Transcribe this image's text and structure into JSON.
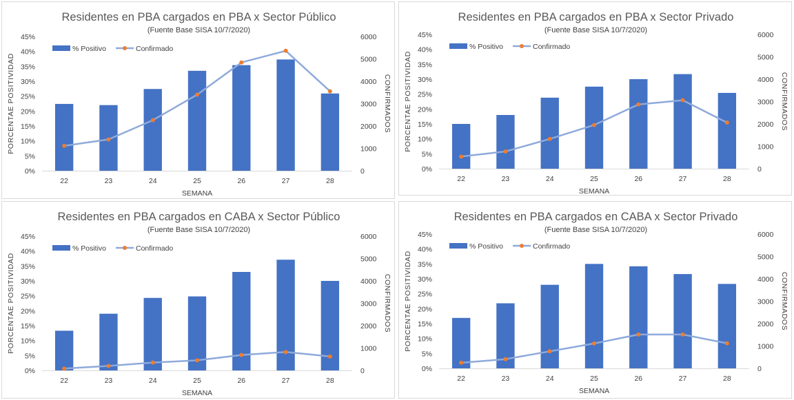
{
  "chart_data": [
    {
      "type": "bar",
      "title": "Residentes en PBA cargados en PBA x Sector Público",
      "subtitle": "(Fuente Base SISA 10/7/2020)",
      "xlabel": "SEMANA",
      "ylabel": "PORCENTAE POSITIVIDAD",
      "y2label": "CONFIRMADOS",
      "categories": [
        "22",
        "23",
        "24",
        "25",
        "26",
        "27",
        "28"
      ],
      "ylim": [
        0,
        45
      ],
      "y2lim": [
        0,
        6000
      ],
      "yticks": [
        "0%",
        "5%",
        "10%",
        "15%",
        "20%",
        "25%",
        "30%",
        "35%",
        "40%",
        "45%"
      ],
      "y2ticks": [
        "0",
        "1000",
        "2000",
        "3000",
        "4000",
        "5000",
        "6000"
      ],
      "legend_position": "top-left",
      "grid": false,
      "series": [
        {
          "name": "% Positivo",
          "type": "bar",
          "axis": "left",
          "color": "#4472c4",
          "values": [
            22.4,
            22.0,
            27.4,
            33.5,
            35.4,
            37.3,
            25.9
          ]
        },
        {
          "name": "Confirmado",
          "type": "line",
          "axis": "right",
          "color": "#8eaadb",
          "marker_color": "#ed7d31",
          "values": [
            1110,
            1400,
            2260,
            3400,
            4840,
            5360,
            3550
          ]
        }
      ]
    },
    {
      "type": "bar",
      "title": "Residentes en PBA cargados en PBA x Sector Privado",
      "subtitle": "(Fuente Base SISA 10/7/2020)",
      "xlabel": "SEMANA",
      "ylabel": "PORCENTAE POSITIVIDAD",
      "y2label": "CONFIRMADOS",
      "categories": [
        "22",
        "23",
        "24",
        "25",
        "26",
        "27",
        "28"
      ],
      "ylim": [
        0,
        45
      ],
      "y2lim": [
        0,
        6000
      ],
      "yticks": [
        "0%",
        "5%",
        "10%",
        "15%",
        "20%",
        "25%",
        "30%",
        "35%",
        "40%",
        "45%"
      ],
      "y2ticks": [
        "0",
        "1000",
        "2000",
        "3000",
        "4000",
        "5000",
        "6000"
      ],
      "legend_position": "top-left",
      "grid": false,
      "series": [
        {
          "name": "% Positivo",
          "type": "bar",
          "axis": "left",
          "color": "#4472c4",
          "values": [
            15.0,
            18.0,
            23.8,
            27.5,
            30.0,
            31.7,
            25.4
          ]
        },
        {
          "name": "Confirmado",
          "type": "line",
          "axis": "right",
          "color": "#8eaadb",
          "marker_color": "#ed7d31",
          "values": [
            540,
            770,
            1330,
            1950,
            2870,
            3060,
            2060
          ]
        }
      ]
    },
    {
      "type": "bar",
      "title": "Residentes en PBA cargados en CABA x Sector Público",
      "subtitle": "(Fuente  Base SISA 10/7/2020)",
      "xlabel": "SEMANA",
      "ylabel": "PORCENTAE POSITIVIDAD",
      "y2label": "CONFIRMADOS",
      "categories": [
        "22",
        "23",
        "24",
        "25",
        "26",
        "27",
        "28"
      ],
      "ylim": [
        0,
        45
      ],
      "y2lim": [
        0,
        6000
      ],
      "yticks": [
        "0%",
        "5%",
        "10%",
        "15%",
        "20%",
        "25%",
        "30%",
        "35%",
        "40%",
        "45%"
      ],
      "y2ticks": [
        "0",
        "1000",
        "2000",
        "3000",
        "4000",
        "5000",
        "6000"
      ],
      "legend_position": "top-left",
      "grid": false,
      "series": [
        {
          "name": "% Positivo",
          "type": "bar",
          "axis": "left",
          "color": "#4472c4",
          "values": [
            13.3,
            19.0,
            24.3,
            24.8,
            33.0,
            37.1,
            30.0
          ]
        },
        {
          "name": "Confirmado",
          "type": "line",
          "axis": "right",
          "color": "#8eaadb",
          "marker_color": "#ed7d31",
          "values": [
            80,
            200,
            350,
            450,
            690,
            820,
            620
          ]
        }
      ]
    },
    {
      "type": "bar",
      "title": "Residentes en PBA cargados en CABA x Sector Privado",
      "subtitle": "(Fuente  Base SISA 10/7/2020)",
      "xlabel": "SEMANA",
      "ylabel": "PORCENTAE POSITIVIDAD",
      "y2label": "CONFIRMADOS",
      "categories": [
        "22",
        "23",
        "24",
        "25",
        "26",
        "27",
        "28"
      ],
      "ylim": [
        0,
        45
      ],
      "y2lim": [
        0,
        6000
      ],
      "yticks": [
        "0%",
        "5%",
        "10%",
        "15%",
        "20%",
        "25%",
        "30%",
        "35%",
        "40%",
        "45%"
      ],
      "y2ticks": [
        "0",
        "1000",
        "2000",
        "3000",
        "4000",
        "5000",
        "6000"
      ],
      "legend_position": "top-left",
      "grid": false,
      "series": [
        {
          "name": "% Positivo",
          "type": "bar",
          "axis": "left",
          "color": "#4472c4",
          "values": [
            16.9,
            21.8,
            28.0,
            35.0,
            34.2,
            31.6,
            28.3
          ]
        },
        {
          "name": "Confirmado",
          "type": "line",
          "axis": "right",
          "color": "#8eaadb",
          "marker_color": "#ed7d31",
          "values": [
            250,
            410,
            760,
            1110,
            1510,
            1510,
            1120
          ]
        }
      ]
    }
  ]
}
